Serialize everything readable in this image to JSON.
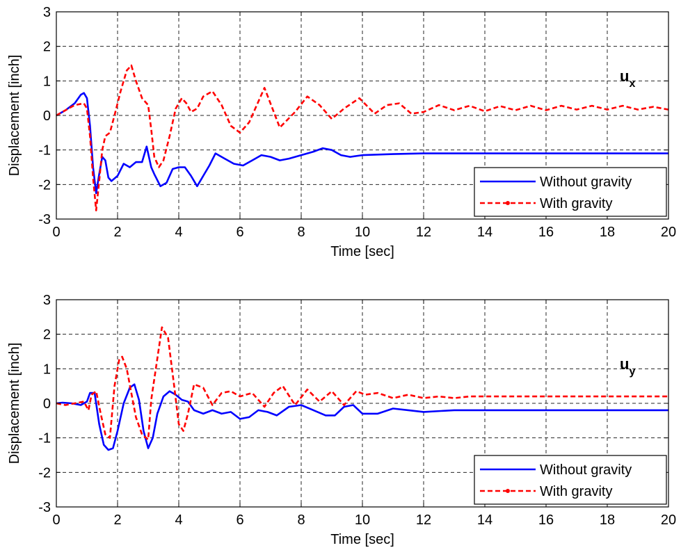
{
  "colors": {
    "without_gravity": "#0000ff",
    "with_gravity": "#ff0000",
    "grid": "#000000",
    "axes": "#000000"
  },
  "chart_data": [
    {
      "type": "line",
      "annotation": {
        "base": "u",
        "sub": "x"
      },
      "xlabel": "Time [sec]",
      "ylabel": "Displacement [inch]",
      "xlim": [
        0,
        20
      ],
      "ylim": [
        -3,
        3
      ],
      "xticks": [
        "0",
        "2",
        "4",
        "6",
        "8",
        "10",
        "12",
        "14",
        "16",
        "18",
        "20"
      ],
      "yticks": [
        "3",
        "2",
        "1",
        "0",
        "-1",
        "-2",
        "-3"
      ],
      "grid": true,
      "legend": {
        "position": "lower-right"
      },
      "series": [
        {
          "name": "Without gravity",
          "style": "solid",
          "x": [
            0,
            0.3,
            0.6,
            0.8,
            0.9,
            1.0,
            1.1,
            1.2,
            1.3,
            1.4,
            1.5,
            1.6,
            1.7,
            1.8,
            2.0,
            2.2,
            2.4,
            2.6,
            2.8,
            2.95,
            3.1,
            3.2,
            3.4,
            3.6,
            3.8,
            4.0,
            4.2,
            4.4,
            4.6,
            4.8,
            5.0,
            5.2,
            5.5,
            5.8,
            6.1,
            6.4,
            6.7,
            7.0,
            7.3,
            7.6,
            8.0,
            8.4,
            8.7,
            9.0,
            9.3,
            9.6,
            10.0,
            11.0,
            12.0,
            14.0,
            16.0,
            18.0,
            20.0
          ],
          "values": [
            0,
            0.15,
            0.35,
            0.6,
            0.65,
            0.5,
            -0.3,
            -1.5,
            -2.25,
            -1.7,
            -1.2,
            -1.3,
            -1.8,
            -1.9,
            -1.75,
            -1.4,
            -1.5,
            -1.35,
            -1.35,
            -0.9,
            -1.5,
            -1.7,
            -2.05,
            -1.95,
            -1.55,
            -1.5,
            -1.5,
            -1.75,
            -2.05,
            -1.75,
            -1.45,
            -1.1,
            -1.25,
            -1.4,
            -1.45,
            -1.3,
            -1.15,
            -1.2,
            -1.3,
            -1.25,
            -1.15,
            -1.05,
            -0.95,
            -1.0,
            -1.15,
            -1.2,
            -1.15,
            -1.12,
            -1.1,
            -1.1,
            -1.1,
            -1.1,
            -1.1
          ]
        },
        {
          "name": "With gravity",
          "style": "dashed",
          "x": [
            0,
            0.3,
            0.6,
            0.9,
            1.0,
            1.1,
            1.2,
            1.3,
            1.4,
            1.5,
            1.6,
            1.75,
            1.9,
            2.1,
            2.3,
            2.45,
            2.6,
            2.8,
            3.0,
            3.1,
            3.2,
            3.35,
            3.5,
            3.7,
            3.9,
            4.1,
            4.25,
            4.4,
            4.6,
            4.8,
            5.1,
            5.4,
            5.7,
            6.0,
            6.3,
            6.8,
            7.3,
            7.8,
            8.2,
            8.6,
            9.0,
            9.4,
            9.9,
            10.4,
            10.8,
            11.2,
            11.6,
            12.0,
            12.5,
            13.0,
            13.5,
            14.0,
            14.5,
            15.0,
            15.5,
            16.0,
            16.5,
            17.0,
            17.5,
            18.0,
            18.5,
            19.0,
            19.5,
            20.0
          ],
          "values": [
            0,
            0.15,
            0.3,
            0.35,
            0.2,
            -0.6,
            -1.8,
            -2.75,
            -1.9,
            -1.0,
            -0.6,
            -0.5,
            0.0,
            0.7,
            1.3,
            1.45,
            1.0,
            0.5,
            0.3,
            -0.4,
            -1.2,
            -1.5,
            -1.3,
            -0.6,
            0.2,
            0.5,
            0.35,
            0.1,
            0.2,
            0.55,
            0.7,
            0.3,
            -0.3,
            -0.5,
            -0.2,
            0.8,
            -0.35,
            0.1,
            0.55,
            0.3,
            -0.1,
            0.2,
            0.5,
            0.05,
            0.3,
            0.35,
            0.05,
            0.1,
            0.3,
            0.15,
            0.28,
            0.12,
            0.27,
            0.15,
            0.28,
            0.15,
            0.28,
            0.17,
            0.28,
            0.17,
            0.28,
            0.17,
            0.25,
            0.17
          ]
        }
      ]
    },
    {
      "type": "line",
      "annotation": {
        "base": "u",
        "sub": "y"
      },
      "xlabel": "Time [sec]",
      "ylabel": "Displacement [inch]",
      "xlim": [
        0,
        20
      ],
      "ylim": [
        -3,
        3
      ],
      "xticks": [
        "0",
        "2",
        "4",
        "6",
        "8",
        "10",
        "12",
        "14",
        "16",
        "18",
        "20"
      ],
      "yticks": [
        "3",
        "2",
        "1",
        "0",
        "-1",
        "-2",
        "-3"
      ],
      "grid": true,
      "legend": {
        "position": "lower-right"
      },
      "series": [
        {
          "name": "Without gravity",
          "style": "solid",
          "x": [
            0,
            0.2,
            0.5,
            0.8,
            1.0,
            1.1,
            1.25,
            1.4,
            1.55,
            1.7,
            1.85,
            2.0,
            2.2,
            2.4,
            2.55,
            2.7,
            2.85,
            3.0,
            3.15,
            3.3,
            3.5,
            3.7,
            3.9,
            4.1,
            4.3,
            4.5,
            4.8,
            5.1,
            5.4,
            5.7,
            6.0,
            6.3,
            6.6,
            6.9,
            7.2,
            7.6,
            8.0,
            8.4,
            8.8,
            9.1,
            9.4,
            9.7,
            10.0,
            10.5,
            11.0,
            11.5,
            12.0,
            13.0,
            14.0,
            16.0,
            18.0,
            20.0
          ],
          "values": [
            0,
            0.02,
            0.0,
            -0.05,
            0.05,
            0.3,
            0.3,
            -0.6,
            -1.2,
            -1.35,
            -1.3,
            -0.8,
            0.0,
            0.45,
            0.55,
            0.1,
            -0.8,
            -1.3,
            -1.0,
            -0.3,
            0.2,
            0.35,
            0.25,
            0.1,
            0.05,
            -0.2,
            -0.3,
            -0.2,
            -0.3,
            -0.25,
            -0.45,
            -0.4,
            -0.2,
            -0.25,
            -0.35,
            -0.1,
            -0.05,
            -0.2,
            -0.35,
            -0.35,
            -0.1,
            -0.05,
            -0.3,
            -0.3,
            -0.15,
            -0.2,
            -0.25,
            -0.2,
            -0.2,
            -0.2,
            -0.2,
            -0.2
          ]
        },
        {
          "name": "With gravity",
          "style": "dashed",
          "x": [
            0,
            0.3,
            0.6,
            0.9,
            1.05,
            1.15,
            1.3,
            1.45,
            1.6,
            1.75,
            1.9,
            2.05,
            2.15,
            2.3,
            2.45,
            2.6,
            2.8,
            3.0,
            3.1,
            3.25,
            3.45,
            3.65,
            3.85,
            4.0,
            4.15,
            4.3,
            4.5,
            4.8,
            5.1,
            5.4,
            5.7,
            6.0,
            6.4,
            6.8,
            7.1,
            7.4,
            7.8,
            8.2,
            8.6,
            9.0,
            9.4,
            9.8,
            10.1,
            10.5,
            11.0,
            11.5,
            12.0,
            12.5,
            13.0,
            13.5,
            14.0,
            15.0,
            16.0,
            18.0,
            20.0
          ],
          "values": [
            0,
            -0.05,
            0.0,
            0.05,
            -0.2,
            0.25,
            0.35,
            -0.3,
            -0.9,
            -1.0,
            0.5,
            1.25,
            1.35,
            1.0,
            0.3,
            -0.4,
            -0.9,
            -1.05,
            0.1,
            1.0,
            2.2,
            1.9,
            0.5,
            -0.6,
            -0.8,
            -0.3,
            0.55,
            0.45,
            -0.05,
            0.3,
            0.35,
            0.2,
            0.3,
            -0.1,
            0.3,
            0.5,
            -0.05,
            0.4,
            0.05,
            0.35,
            -0.05,
            0.35,
            0.25,
            0.3,
            0.15,
            0.25,
            0.15,
            0.2,
            0.15,
            0.2,
            0.2,
            0.2,
            0.2,
            0.2,
            0.2
          ]
        }
      ]
    }
  ]
}
